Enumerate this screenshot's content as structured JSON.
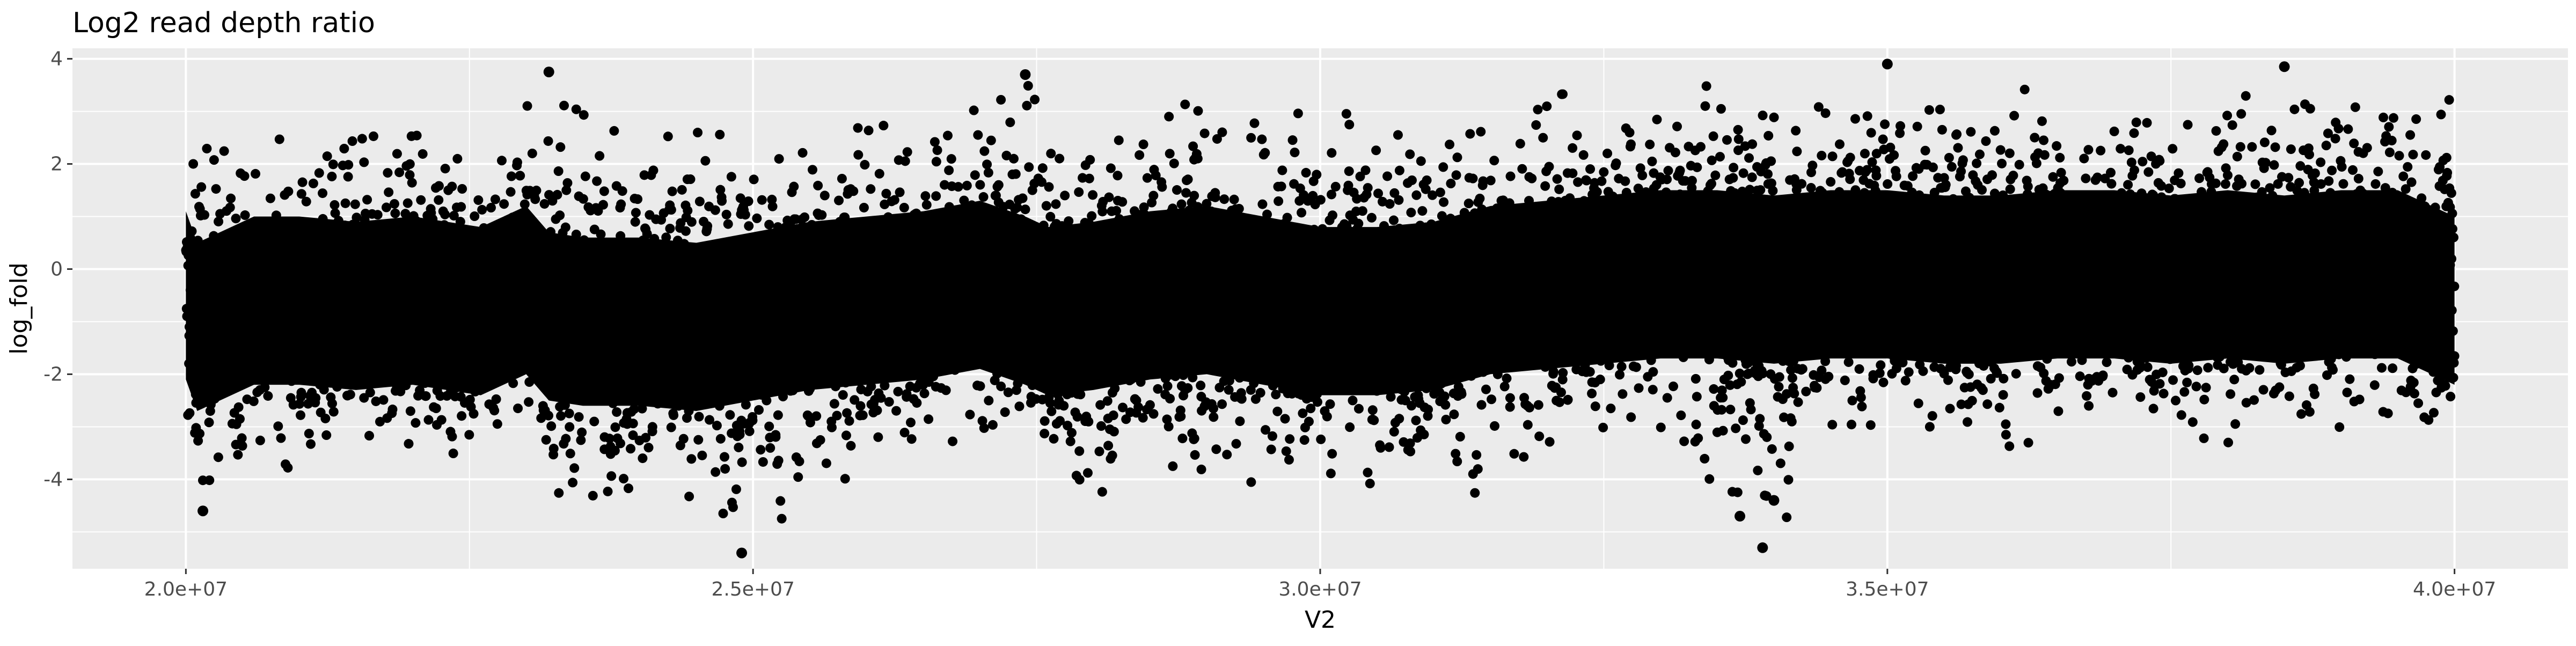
{
  "chart_data": {
    "type": "scatter",
    "title": "Log2 read depth ratio",
    "xlabel": "V2",
    "ylabel": "log_fold",
    "xlim": [
      19000000,
      41000000
    ],
    "ylim": [
      -5.7,
      4.2
    ],
    "x_ticks": [
      {
        "value": 20000000,
        "label": "2.0e+07"
      },
      {
        "value": 25000000,
        "label": "2.5e+07"
      },
      {
        "value": 30000000,
        "label": "3.0e+07"
      },
      {
        "value": 35000000,
        "label": "3.5e+07"
      },
      {
        "value": 40000000,
        "label": "4.0e+07"
      }
    ],
    "y_ticks": [
      {
        "value": 4,
        "label": "4"
      },
      {
        "value": 2,
        "label": "2"
      },
      {
        "value": 0,
        "label": "0"
      },
      {
        "value": -2,
        "label": "-2"
      },
      {
        "value": -4,
        "label": "-4"
      }
    ],
    "grid": true,
    "panel_background": "#ebebeb",
    "grid_color": "#ffffff",
    "point_color": "#000000",
    "series": [
      {
        "x": [
          20000000,
          20100000,
          20600000,
          21000000,
          21500000,
          22000000,
          22600000,
          23000000,
          23200000,
          23500000,
          24000000,
          24500000,
          25000000,
          25500000,
          26000000,
          26500000,
          27000000,
          27400000,
          27600000,
          28000000,
          28500000,
          29000000,
          29500000,
          30000000,
          30500000,
          31000000,
          31500000,
          32000000,
          32500000,
          33000000,
          33500000,
          34000000,
          34500000,
          35000000,
          35500000,
          36000000,
          36500000,
          37000000,
          37500000,
          38000000,
          38500000,
          39000000,
          39500000,
          40000000
        ],
        "y": [
          -0.5,
          -1.1,
          -0.6,
          -0.6,
          -0.7,
          -0.6,
          -0.8,
          -0.4,
          -0.9,
          -1.0,
          -1.0,
          -1.1,
          -0.9,
          -0.7,
          -0.6,
          -0.5,
          -0.3,
          -0.6,
          -0.8,
          -0.7,
          -0.5,
          -0.4,
          -0.6,
          -0.8,
          -0.8,
          -0.7,
          -0.4,
          -0.3,
          -0.2,
          -0.1,
          -0.1,
          -0.2,
          -0.1,
          -0.1,
          -0.2,
          -0.2,
          -0.1,
          -0.1,
          -0.2,
          -0.1,
          -0.2,
          -0.1,
          -0.1,
          -0.6
        ]
      }
    ],
    "y_upper_extent": [
      1.6,
      2.8,
      2.3,
      2.6,
      2.6,
      2.7,
      2.4,
      3.6,
      3.2,
      3.0,
      2.8,
      2.6,
      2.5,
      2.6,
      2.7,
      2.8,
      3.2,
      3.6,
      2.7,
      2.8,
      3.0,
      3.5,
      2.9,
      3.0,
      2.9,
      3.0,
      3.0,
      3.3,
      3.4,
      3.4,
      3.5,
      3.6,
      3.4,
      3.8,
      3.4,
      3.5,
      3.3,
      3.4,
      3.5,
      3.6,
      3.8,
      3.5,
      3.4,
      3.2
    ],
    "y_lower_extent": [
      -3.8,
      -4.6,
      -3.6,
      -3.9,
      -3.8,
      -3.6,
      -3.9,
      -3.0,
      -4.2,
      -4.4,
      -4.5,
      -4.3,
      -5.4,
      -4.3,
      -3.8,
      -3.7,
      -3.6,
      -3.0,
      -4.3,
      -4.3,
      -3.9,
      -4.6,
      -3.9,
      -4.0,
      -4.2,
      -4.6,
      -4.3,
      -3.5,
      -3.2,
      -3.0,
      -4.8,
      -5.3,
      -3.3,
      -3.0,
      -3.0,
      -3.4,
      -3.2,
      -3.0,
      -3.5,
      -3.3,
      -3.2,
      -3.0,
      -3.1,
      -3.4
    ],
    "notable_points": [
      {
        "x": 20150000,
        "y": -4.6
      },
      {
        "x": 24900000,
        "y": -5.4
      },
      {
        "x": 33700000,
        "y": -4.7
      },
      {
        "x": 33900000,
        "y": -5.3
      },
      {
        "x": 34000000,
        "y": -4.4
      },
      {
        "x": 35000000,
        "y": 3.9
      },
      {
        "x": 38500000,
        "y": 3.85
      },
      {
        "x": 23200000,
        "y": 3.75
      },
      {
        "x": 27400000,
        "y": 3.7
      }
    ]
  }
}
